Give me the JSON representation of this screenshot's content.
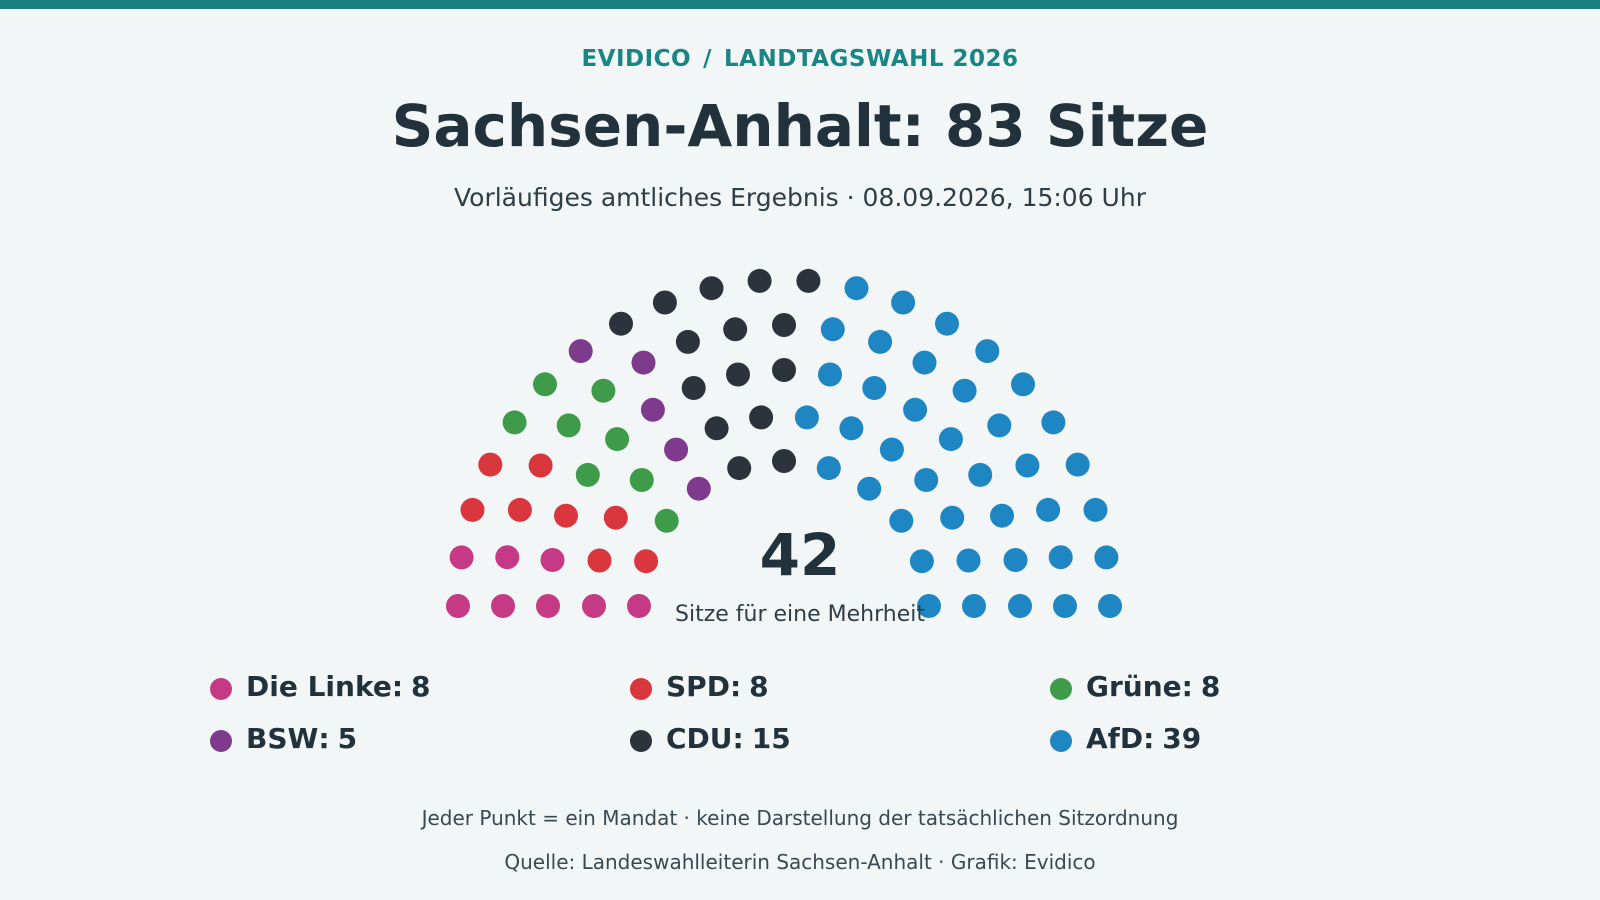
{
  "header": {
    "brand": "EVIDICO",
    "separator": "/",
    "election": "LANDTAGSWAHL 2026",
    "title": "Sachsen-Anhalt: 83 Sitze",
    "subtitle": "Vorläufiges amtliches Ergebnis · 08.09.2026, 15:06 Uhr"
  },
  "chart_data": {
    "type": "parliament",
    "total_seats": 83,
    "majority": {
      "value": "42",
      "label": "Sitze für eine Mehrheit"
    },
    "series": [
      {
        "name": "Die Linke",
        "value": 8,
        "color": "#c63a85"
      },
      {
        "name": "SPD",
        "value": 8,
        "color": "#d9363e"
      },
      {
        "name": "Grüne",
        "value": 8,
        "color": "#3e9b4a"
      },
      {
        "name": "BSW",
        "value": 5,
        "color": "#7e3b8d"
      },
      {
        "name": "CDU",
        "value": 15,
        "color": "#2c333c"
      },
      {
        "name": "AfD",
        "value": 39,
        "color": "#1e87c3"
      }
    ]
  },
  "legend": {
    "items": [
      {
        "name": "Die Linke",
        "count": "8",
        "color": "#c63a85"
      },
      {
        "name": "SPD",
        "count": "8",
        "color": "#d9363e"
      },
      {
        "name": "Grüne",
        "count": "8",
        "color": "#3e9b4a"
      },
      {
        "name": "BSW",
        "count": "5",
        "color": "#7e3b8d"
      },
      {
        "name": "CDU",
        "count": "15",
        "color": "#2c333c"
      },
      {
        "name": "AfD",
        "count": "39",
        "color": "#1e87c3"
      }
    ]
  },
  "footer": {
    "note": "Jeder Punkt = ein Mandat · keine Darstellung der tatsächlichen Sitzordnung",
    "source": "Quelle: Landeswahlleiterin Sachsen-Anhalt · Grafik: Evidico"
  }
}
